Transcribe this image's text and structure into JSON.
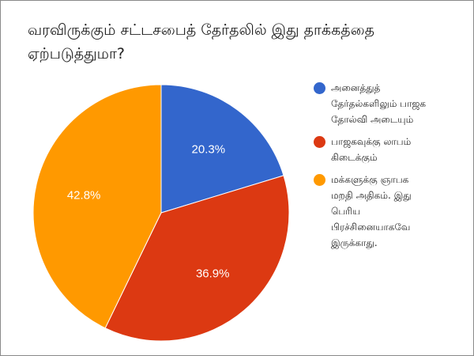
{
  "chart_data": {
    "type": "pie",
    "title": "வரவிருக்கும் சட்டசபைத் தேர்தலில் இது தாக்கத்தை ஏற்படுத்துமா?",
    "legend_position": "right",
    "slices": [
      {
        "label": "அனைத்துத் தேர்தல்களிலும் பாஜக தோல்வி அடையும்",
        "label_display": "அனைத்துத்\nதேர்தல்களிலும் பாஜக\nதோல்வி அடையும்",
        "value": 20.3,
        "value_text": "20.3%",
        "color": "#3366cc"
      },
      {
        "label": "பாஜகவுக்கு லாபம் கிடைக்கும்",
        "label_display": "பாஜகவுக்கு லாபம்\nகிடைக்கும்",
        "value": 36.9,
        "value_text": "36.9%",
        "color": "#dc3912"
      },
      {
        "label": "மக்களுக்கு ஞாபக மறதி அதிகம். இது பெரிய பிரச்சினையாகவே இருக்காது.",
        "label_display": "மக்களுக்கு ஞாபக\nமறதி அதிகம். இது\nபெரிய\nபிரச்சினையாகவே\nஇருக்காது.",
        "value": 42.8,
        "value_text": "42.8%",
        "color": "#ff9900"
      }
    ]
  }
}
